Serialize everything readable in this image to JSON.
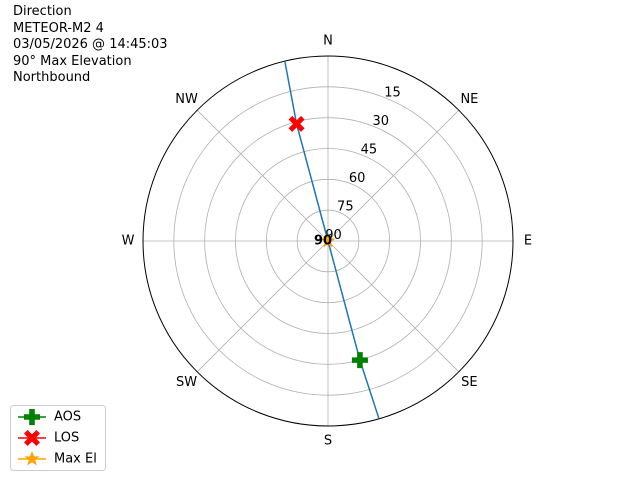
{
  "chart_data": {
    "type": "polar",
    "info_lines": [
      "Direction",
      "METEOR-M2 4",
      "03/05/2026 @ 14:45:03",
      "90° Max Elevation",
      "Northbound"
    ],
    "theta_zero": "N",
    "theta_direction": "clockwise",
    "angle_ticks": [
      {
        "value": 0,
        "label": "N"
      },
      {
        "value": 45,
        "label": "NE"
      },
      {
        "value": 90,
        "label": "E"
      },
      {
        "value": 135,
        "label": "SE"
      },
      {
        "value": 180,
        "label": "S"
      },
      {
        "value": 225,
        "label": "SW"
      },
      {
        "value": 270,
        "label": "W"
      },
      {
        "value": 315,
        "label": "NW"
      }
    ],
    "rlim": [
      90,
      0
    ],
    "rticks": [
      15,
      30,
      45,
      60,
      75,
      90
    ],
    "grid": true,
    "legend": "lower left",
    "track": {
      "color": "#1f77b4",
      "azimuth": [
        346.5,
        345,
        0,
        165,
        164
      ],
      "elevation": [
        0,
        31,
        90,
        30,
        0
      ]
    },
    "series": [
      {
        "name": "AOS",
        "color": "green",
        "marker": "plus",
        "azimuth": [
          165
        ],
        "elevation": [
          30
        ]
      },
      {
        "name": "LOS",
        "color": "red",
        "marker": "x",
        "azimuth": [
          345
        ],
        "elevation": [
          31
        ]
      },
      {
        "name": "Max El",
        "color": "orange",
        "marker": "star",
        "azimuth": [
          0
        ],
        "elevation": [
          90
        ],
        "value_labels": [
          "90"
        ]
      }
    ]
  }
}
